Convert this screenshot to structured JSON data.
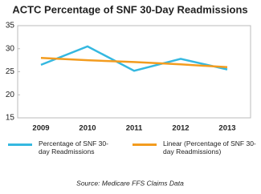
{
  "chart_data": {
    "type": "line",
    "title": "ACTC Percentage of SNF 30-Day Readmissions",
    "categories": [
      "2009",
      "2010",
      "2011",
      "2012",
      "2013"
    ],
    "series": [
      {
        "name": "Percentage of SNF 30-day Readmissions",
        "color": "#35b8e0",
        "values": [
          26.5,
          30.5,
          25.2,
          27.8,
          25.5
        ]
      },
      {
        "name": "Linear (Percentage of SNF 30-day Readmissions)",
        "color": "#f39c1f",
        "values": [
          28.0,
          27.5,
          27.1,
          26.6,
          26.0
        ]
      }
    ],
    "ylim": [
      15,
      35
    ],
    "yticks": [
      15,
      20,
      25,
      30,
      35
    ],
    "grid": false,
    "source": "Source: Medicare FFS Claims Data"
  }
}
